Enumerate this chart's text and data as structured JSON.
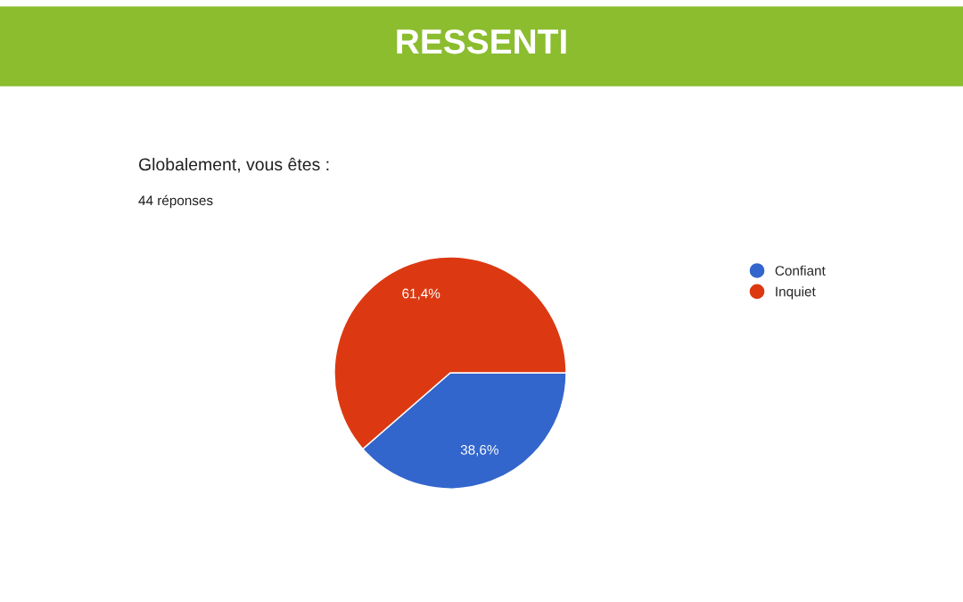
{
  "chart_data": {
    "type": "pie",
    "title": "RESSENTI",
    "subtitle": "Globalement, vous êtes :",
    "annotations": [
      "44 réponses"
    ],
    "categories": [
      "Confiant",
      "Inquiet"
    ],
    "values": [
      38.6,
      61.4
    ],
    "colors": [
      "#3366cc",
      "#dc3912"
    ],
    "value_labels": [
      "38,6%",
      "61,4%"
    ],
    "legend": "right"
  }
}
